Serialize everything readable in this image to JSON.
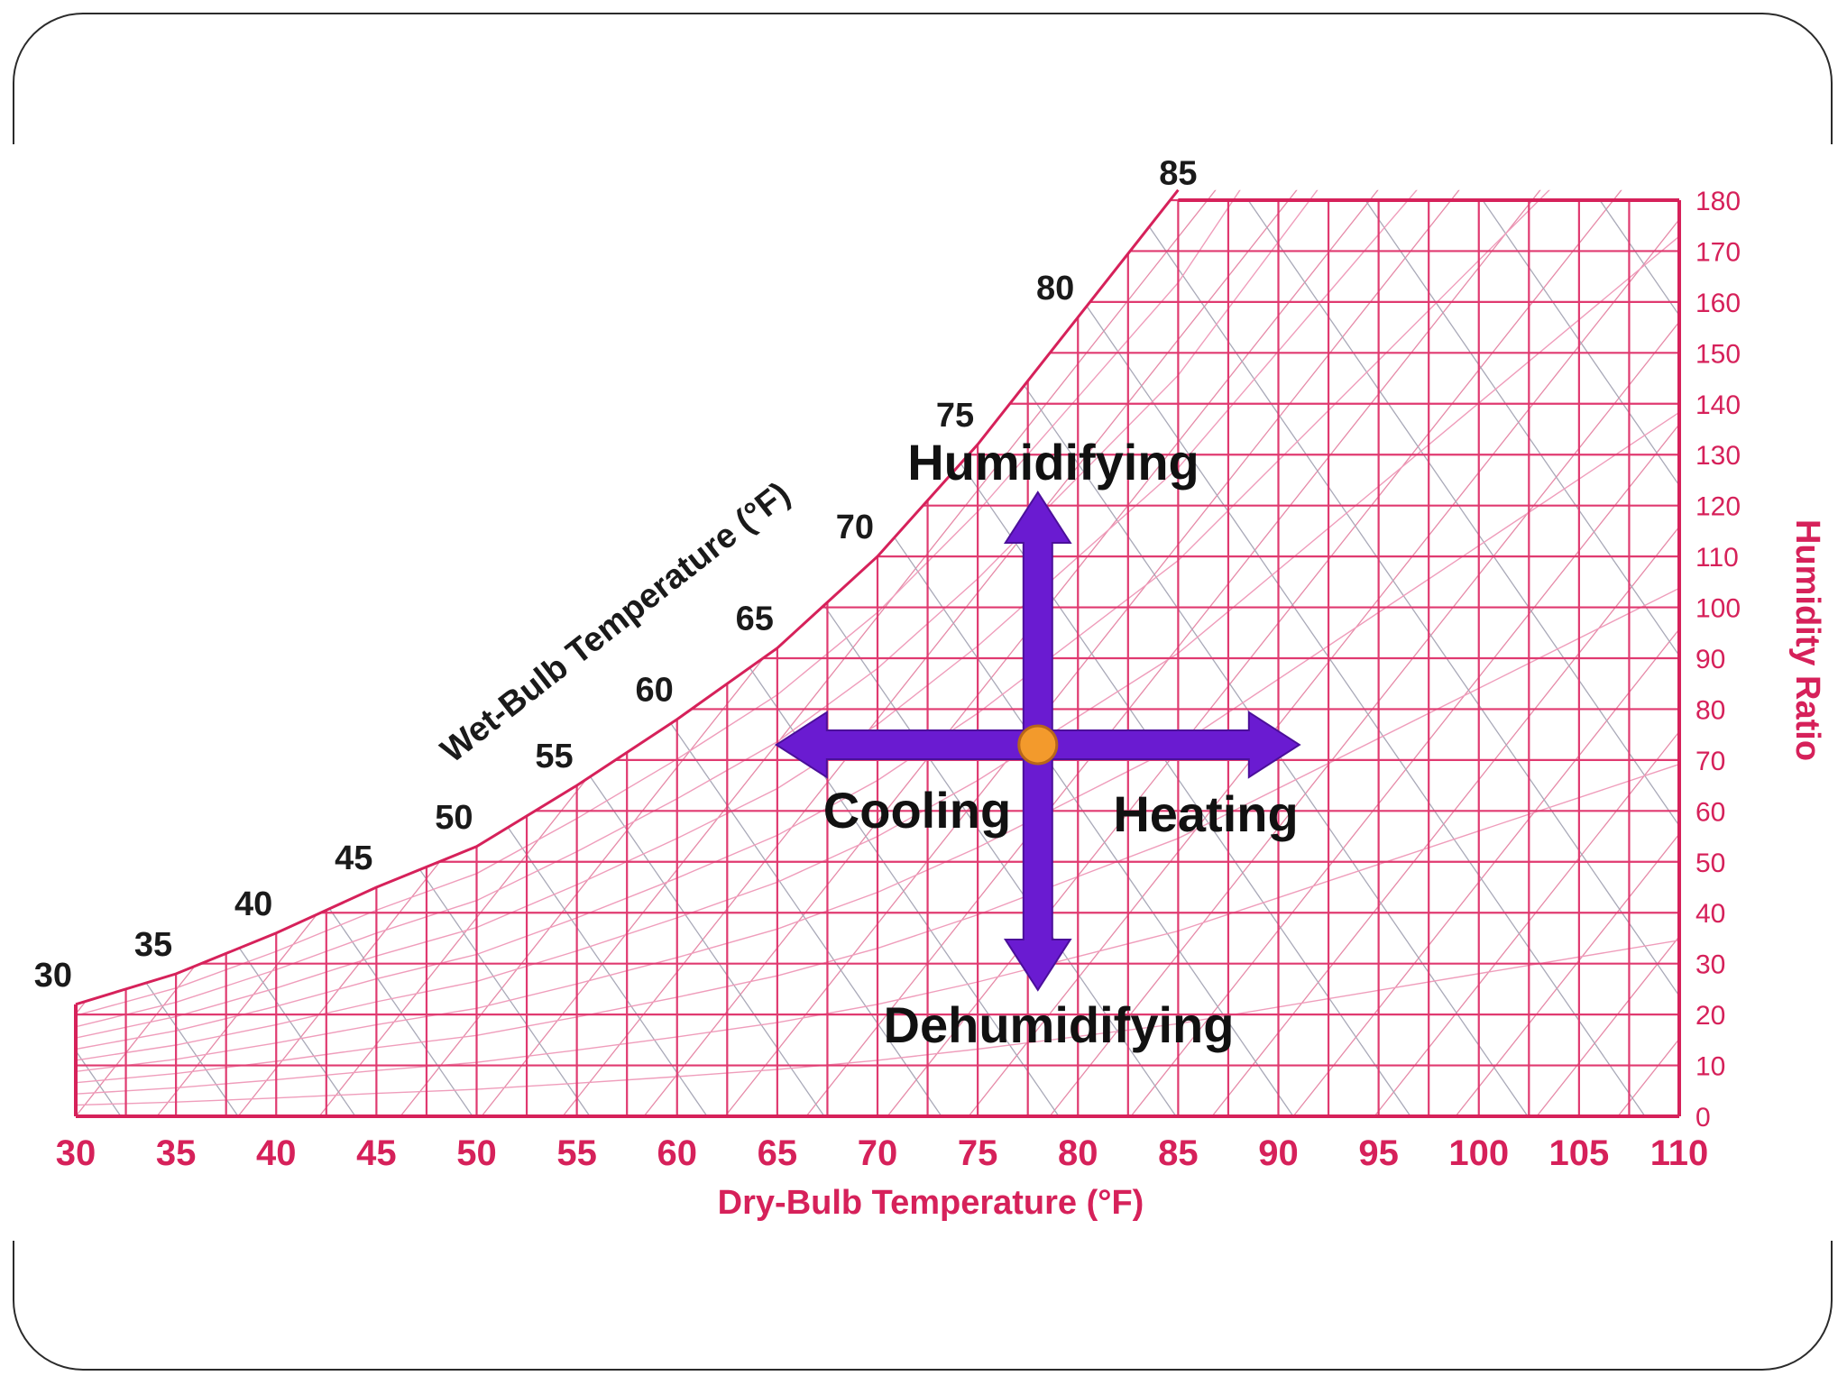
{
  "chart_data": {
    "type": "psychrometric",
    "xlabel": "Dry-Bulb Temperature (°F)",
    "ylabel": "Humidity Ratio",
    "wet_bulb_axis_title": "Wet-Bulb Temperature (°F)",
    "x_ticks": [
      30,
      35,
      40,
      45,
      50,
      55,
      60,
      65,
      70,
      75,
      80,
      85,
      90,
      95,
      100,
      105,
      110
    ],
    "y_ticks": [
      0,
      10,
      20,
      30,
      40,
      50,
      60,
      70,
      80,
      90,
      100,
      110,
      120,
      130,
      140,
      150,
      160,
      170,
      180
    ],
    "xlim": [
      30,
      110
    ],
    "ylim": [
      0,
      180
    ],
    "wet_bulb_labels": [
      30,
      35,
      40,
      45,
      50,
      55,
      60,
      65,
      70,
      75,
      80,
      85
    ],
    "saturation_curve": [
      {
        "x": 30,
        "y": 22
      },
      {
        "x": 35,
        "y": 28
      },
      {
        "x": 40,
        "y": 36
      },
      {
        "x": 45,
        "y": 45
      },
      {
        "x": 50,
        "y": 53
      },
      {
        "x": 55,
        "y": 65
      },
      {
        "x": 60,
        "y": 78
      },
      {
        "x": 65,
        "y": 92
      },
      {
        "x": 70,
        "y": 110
      },
      {
        "x": 75,
        "y": 132
      },
      {
        "x": 80,
        "y": 157
      },
      {
        "x": 85,
        "y": 182
      }
    ],
    "state_point": {
      "x": 78,
      "y": 73
    },
    "processes": {
      "up": "Humidifying",
      "down": "Dehumidifying",
      "left": "Cooling",
      "right": "Heating"
    },
    "colors": {
      "grid": "#e03a70",
      "axis": "#d6215a",
      "arrow": "#6a1bd1",
      "point": "#f39a2c"
    }
  }
}
